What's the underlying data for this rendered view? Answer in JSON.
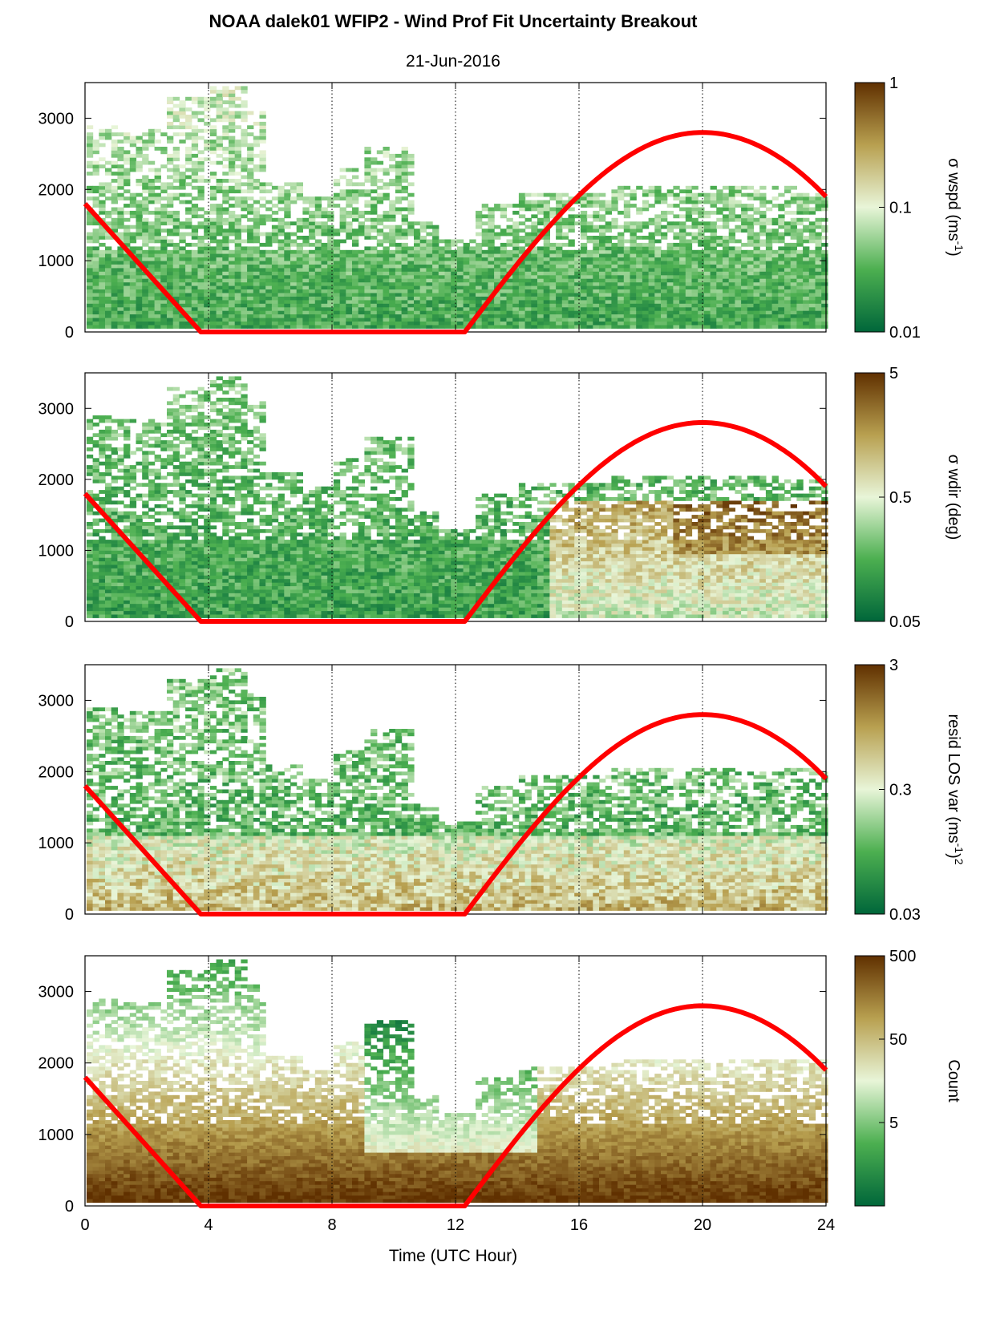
{
  "figure": {
    "title": "NOAA dalek01 WFIP2 - Wind Prof Fit Uncertainty Breakout",
    "subtitle": "21-Jun-2016",
    "xlabel": "Time (UTC Hour)"
  },
  "colors": {
    "green_dark": "#00663a",
    "green_mid": "#4caf50",
    "green_light": "#e8f5d8",
    "brown_light": "#d8c98a",
    "brown_dark": "#603000",
    "sun_curve": "#ff0000"
  },
  "chart_data": [
    {
      "type": "heatmap",
      "panel": "wspd",
      "colorbar_label": "σ wspd (ms-1)",
      "colorbar_label_main": "σ wspd (ms",
      "colorbar_label_sup": "-1",
      "colorbar_label_end": ")",
      "colorbar_scale": "log",
      "colorbar_range": [
        0.01,
        1
      ],
      "colorbar_ticks": [
        "1",
        "0.1",
        "0.01"
      ],
      "colorbar_tick_values": [
        1,
        0.1,
        0.01
      ],
      "xlim": [
        0,
        24
      ],
      "ylim": [
        0,
        3500
      ],
      "x_ticks": [
        0,
        4,
        8,
        12,
        16,
        20,
        24
      ],
      "y_ticks": [
        "0",
        "1000",
        "2000",
        "3000"
      ],
      "y_tick_values": [
        0,
        1000,
        2000,
        3000
      ],
      "vertical_gridlines": [
        4,
        8,
        12,
        16,
        20
      ],
      "sun_curve": {
        "x": [
          0,
          3.75,
          12.3,
          20,
          24
        ],
        "y": [
          1800,
          0,
          0,
          2800,
          1900
        ]
      }
    },
    {
      "type": "heatmap",
      "panel": "wdir",
      "colorbar_label": "σ wdir (deg)",
      "colorbar_label_main": "σ wdir (deg)",
      "colorbar_label_sup": "",
      "colorbar_label_end": "",
      "colorbar_scale": "log",
      "colorbar_range": [
        0.05,
        5
      ],
      "colorbar_ticks": [
        "5",
        "0.5",
        "0.05"
      ],
      "colorbar_tick_values": [
        5,
        0.5,
        0.05
      ],
      "xlim": [
        0,
        24
      ],
      "ylim": [
        0,
        3500
      ],
      "x_ticks": [
        0,
        4,
        8,
        12,
        16,
        20,
        24
      ],
      "y_ticks": [
        "0",
        "1000",
        "2000",
        "3000"
      ],
      "y_tick_values": [
        0,
        1000,
        2000,
        3000
      ],
      "vertical_gridlines": [
        4,
        8,
        12,
        16,
        20
      ],
      "sun_curve": {
        "x": [
          0,
          3.75,
          12.3,
          20,
          24
        ],
        "y": [
          1800,
          0,
          0,
          2800,
          1900
        ]
      }
    },
    {
      "type": "heatmap",
      "panel": "resid",
      "colorbar_label": "resid LOS var (ms-1)2",
      "colorbar_label_main": "resid LOS var (ms",
      "colorbar_label_sup": "-1",
      "colorbar_label_end": ")",
      "colorbar_label_sup2": "2",
      "colorbar_scale": "log",
      "colorbar_range": [
        0.03,
        3
      ],
      "colorbar_ticks": [
        "3",
        "0.3",
        "0.03"
      ],
      "colorbar_tick_values": [
        3,
        0.3,
        0.03
      ],
      "xlim": [
        0,
        24
      ],
      "ylim": [
        0,
        3500
      ],
      "x_ticks": [
        0,
        4,
        8,
        12,
        16,
        20,
        24
      ],
      "y_ticks": [
        "0",
        "1000",
        "2000",
        "3000"
      ],
      "y_tick_values": [
        0,
        1000,
        2000,
        3000
      ],
      "vertical_gridlines": [
        4,
        8,
        12,
        16,
        20
      ],
      "sun_curve": {
        "x": [
          0,
          3.75,
          12.3,
          20,
          24
        ],
        "y": [
          1800,
          0,
          0,
          2800,
          1900
        ]
      }
    },
    {
      "type": "heatmap",
      "panel": "count",
      "colorbar_label": "Count",
      "colorbar_label_main": "Count",
      "colorbar_label_sup": "",
      "colorbar_label_end": "",
      "colorbar_scale": "log",
      "colorbar_range": [
        0.5,
        500
      ],
      "colorbar_ticks": [
        "500",
        "50",
        "5"
      ],
      "colorbar_tick_values": [
        500,
        50,
        5
      ],
      "xlim": [
        0,
        24
      ],
      "ylim": [
        0,
        3500
      ],
      "x_ticks": [
        0,
        4,
        8,
        12,
        16,
        20,
        24
      ],
      "x_tick_labels": [
        "0",
        "4",
        "8",
        "12",
        "16",
        "20",
        "24"
      ],
      "y_ticks": [
        "0",
        "1000",
        "2000",
        "3000"
      ],
      "y_tick_values": [
        0,
        1000,
        2000,
        3000
      ],
      "vertical_gridlines": [
        4,
        8,
        12,
        16,
        20
      ],
      "sun_curve": {
        "x": [
          0,
          3.75,
          12.3,
          20,
          24
        ],
        "y": [
          1800,
          0,
          0,
          2800,
          1900
        ]
      }
    }
  ]
}
